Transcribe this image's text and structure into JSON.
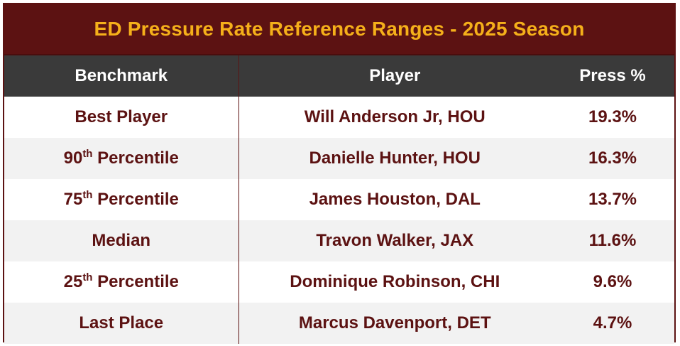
{
  "title": "ED Pressure Rate Reference Ranges - 2025 Season",
  "colors": {
    "title_bg": "#5c1212",
    "title_text": "#f5b01a",
    "header_bg": "#3a3a3a",
    "header_text": "#ffffff",
    "body_text": "#5c1212",
    "stripe_bg": "#f2f2f2"
  },
  "headers": {
    "benchmark": "Benchmark",
    "player": "Player",
    "press": "Press %"
  },
  "rows": [
    {
      "bench_num": "",
      "bench_sup": "",
      "bench_text": "Best Player",
      "player": "Will Anderson Jr, HOU",
      "press": "19.3%"
    },
    {
      "bench_num": "90",
      "bench_sup": "th",
      "bench_text": " Percentile",
      "player": "Danielle Hunter, HOU",
      "press": "16.3%"
    },
    {
      "bench_num": "75",
      "bench_sup": "th",
      "bench_text": " Percentile",
      "player": "James Houston, DAL",
      "press": "13.7%"
    },
    {
      "bench_num": "",
      "bench_sup": "",
      "bench_text": "Median",
      "player": "Travon Walker, JAX",
      "press": "11.6%"
    },
    {
      "bench_num": "25",
      "bench_sup": "th",
      "bench_text": " Percentile",
      "player": "Dominique Robinson, CHI",
      "press": "9.6%"
    },
    {
      "bench_num": "",
      "bench_sup": "",
      "bench_text": "Last Place",
      "player": "Marcus Davenport, DET",
      "press": "4.7%"
    }
  ]
}
